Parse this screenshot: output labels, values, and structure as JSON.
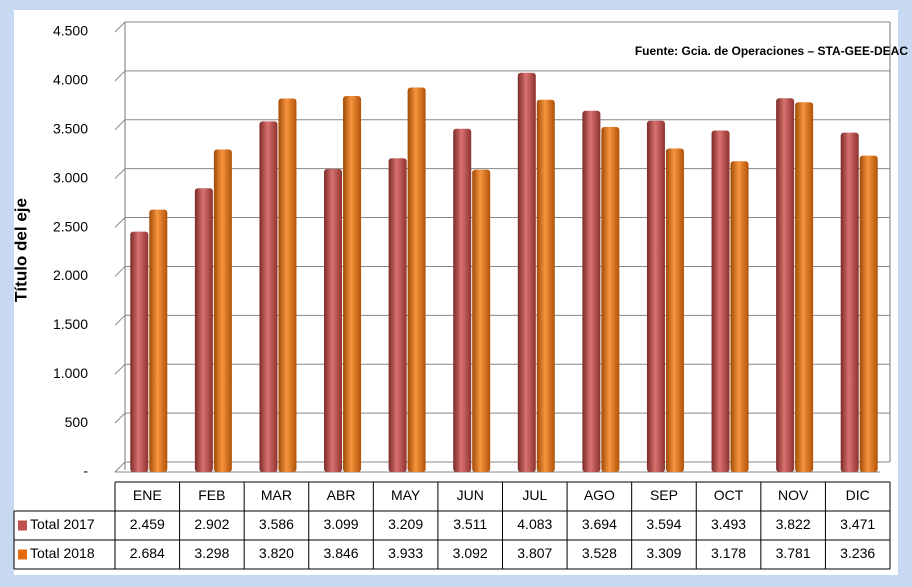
{
  "chart_data": {
    "type": "bar",
    "source_note": "Fuente: Gcia. de Operaciones – STA-GEE-DEAC",
    "y_axis_label": "Título del eje",
    "categories": [
      "ENE",
      "FEB",
      "MAR",
      "ABR",
      "MAY",
      "JUN",
      "JUL",
      "AGO",
      "SEP",
      "OCT",
      "NOV",
      "DIC"
    ],
    "series": [
      {
        "name": "Total 2017",
        "color": "#c0504d",
        "values": [
          2459,
          2902,
          3586,
          3099,
          3209,
          3511,
          4083,
          3694,
          3594,
          3493,
          3822,
          3471
        ],
        "value_labels": [
          "2.459",
          "2.902",
          "3.586",
          "3.099",
          "3.209",
          "3.511",
          "4.083",
          "3.694",
          "3.594",
          "3.493",
          "3.822",
          "3.471"
        ]
      },
      {
        "name": "Total 2018",
        "color": "#e46c0a",
        "values": [
          2684,
          3298,
          3820,
          3846,
          3933,
          3092,
          3807,
          3528,
          3309,
          3178,
          3781,
          3236
        ],
        "value_labels": [
          "2.684",
          "3.298",
          "3.820",
          "3.846",
          "3.933",
          "3.092",
          "3.807",
          "3.528",
          "3.309",
          "3.178",
          "3.781",
          "3.236"
        ]
      }
    ],
    "ylim": [
      0,
      4500
    ],
    "yticks": [
      {
        "value": 0,
        "label": "-"
      },
      500,
      {
        "value": 1000,
        "label": "1.000"
      },
      {
        "value": 1500,
        "label": "1.500"
      },
      {
        "value": 2000,
        "label": "2.000"
      },
      {
        "value": 2500,
        "label": "2.500"
      },
      {
        "value": 3000,
        "label": "3.000"
      },
      {
        "value": 3500,
        "label": "3.500"
      },
      {
        "value": 4000,
        "label": "4.000"
      },
      {
        "value": 4500,
        "label": "4.500"
      }
    ],
    "grid": true
  }
}
